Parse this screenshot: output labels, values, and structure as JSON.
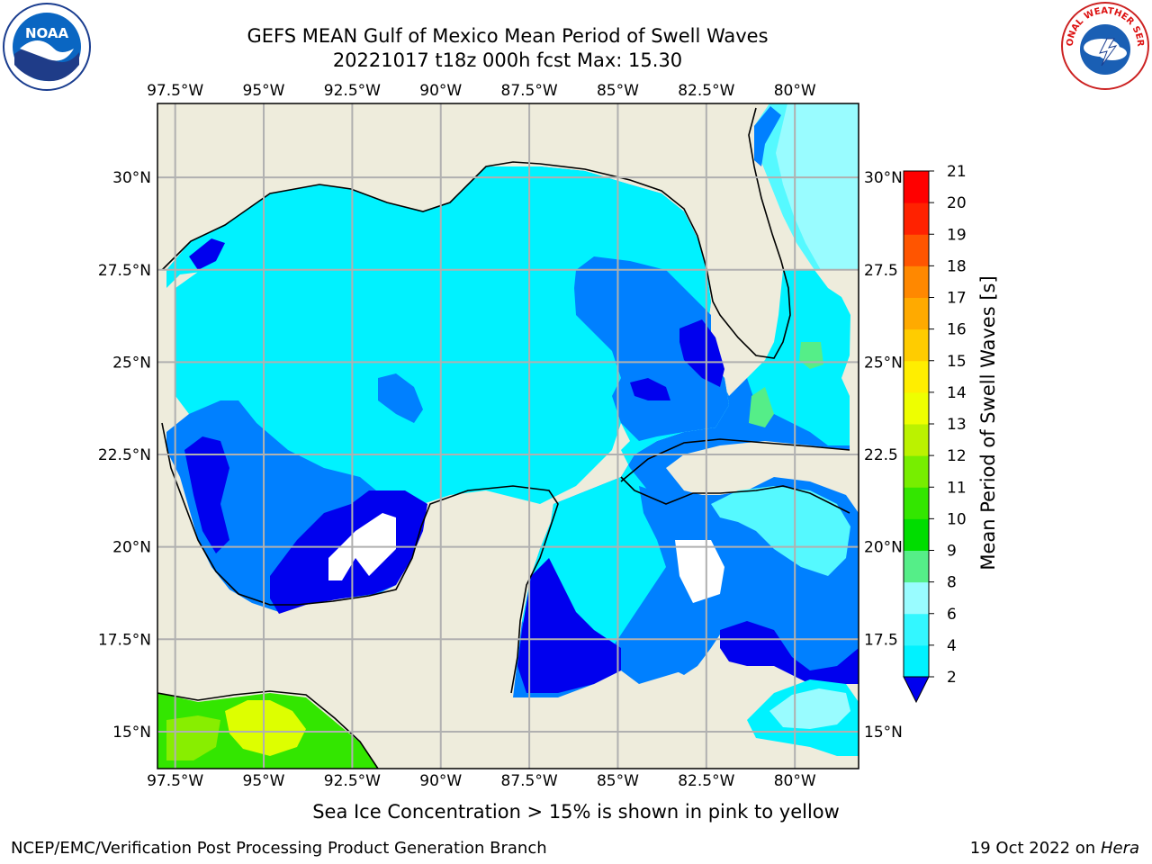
{
  "title": {
    "line1": "GEFS MEAN Gulf of Mexico Mean Period of Swell Waves",
    "line2": "20221017 t18z 000h fcst   Max: 15.30"
  },
  "map": {
    "lon_ticks": [
      "97.5°W",
      "95°W",
      "92.5°W",
      "90°W",
      "87.5°W",
      "85°W",
      "82.5°W",
      "80°W"
    ],
    "lat_ticks_left": [
      "30°N",
      "27.5°N",
      "25°N",
      "22.5°N",
      "20°N",
      "17.5°N",
      "15°N"
    ],
    "lat_ticks_right": [
      "30°N",
      "27.5",
      "25°N",
      "22.5",
      "20°N",
      "17.5",
      "15°N"
    ],
    "lon_range": [
      -98,
      -78.2
    ],
    "lat_range": [
      14,
      32
    ]
  },
  "colorbar": {
    "label": "Mean Period of Swell Waves [s]",
    "ticks": [
      "2",
      "4",
      "6",
      "8",
      "9",
      "10",
      "11",
      "12",
      "13",
      "14",
      "15",
      "16",
      "17",
      "18",
      "19",
      "20",
      "21"
    ],
    "colors": [
      "#0000ee",
      "#0066ff",
      "#00ccff",
      "#00f2ff",
      "#33f7ff",
      "#99fcff",
      "#55ee88",
      "#00dd00",
      "#33e600",
      "#77ee00",
      "#bbf200",
      "#eeff00",
      "#ffee00",
      "#ffcc00",
      "#ffaa00",
      "#ff8800",
      "#ff5500",
      "#ff2200",
      "#ff0000"
    ]
  },
  "colors": {
    "land": "#eeecdc",
    "ocean_main": "#00f2ff",
    "ocean_light": "#55f9ff",
    "ocean_mid": "#0080ff",
    "ocean_deep": "#0000ee",
    "pacific_green": "#33e600",
    "pacific_yellow": "#ddff00"
  },
  "logos": {
    "noaa_text": "NOAA",
    "nws_text": "NATIONAL WEATHER SERVICE"
  },
  "notes": {
    "sea_ice": "Sea Ice Concentration > 15% is shown in pink to yellow"
  },
  "footer": {
    "left": "NCEP/EMC/Verification Post Processing Product Generation Branch",
    "right_date": "19 Oct 2022 on ",
    "right_host": "Hera"
  }
}
